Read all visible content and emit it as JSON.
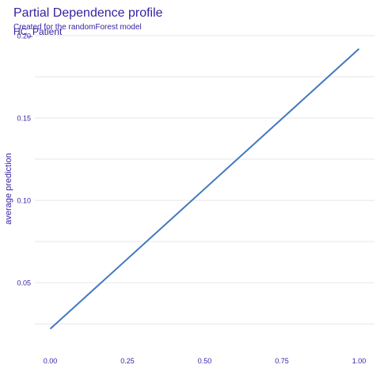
{
  "chart_data": {
    "type": "line",
    "title": "Partial Dependence profile",
    "subtitle": "Created for the randomForest model",
    "panel_label": "HC_Patient",
    "xlabel": "",
    "ylabel": "average prediction",
    "xlim": [
      -0.05,
      1.05
    ],
    "ylim": [
      0.014,
      0.2
    ],
    "x_ticks": [
      0.0,
      0.25,
      0.5,
      0.75,
      1.0
    ],
    "x_tick_labels": [
      "0.00",
      "0.25",
      "0.50",
      "0.75",
      "1.00"
    ],
    "y_ticks": [
      0.05,
      0.1,
      0.15,
      0.2
    ],
    "y_tick_labels": [
      "0.05",
      "0.10",
      "0.15",
      "0.20"
    ],
    "grid": true,
    "series": [
      {
        "color": "#4378bf",
        "x": [
          0.0,
          1.0
        ],
        "y": [
          0.022,
          0.192
        ]
      }
    ]
  }
}
